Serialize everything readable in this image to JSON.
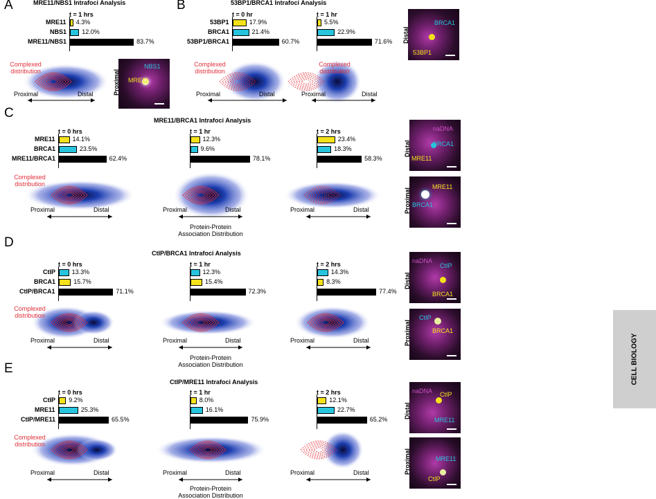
{
  "colors": {
    "yellow": "#f5e21a",
    "cyan": "#27c4de",
    "black": "#000000",
    "red": "#e0303a",
    "blue": "#1d3fb0"
  },
  "panels": {
    "A": {
      "letter": "A",
      "title": "MRE11/NBS1 Intrafoci Analysis",
      "charts": [
        {
          "time": "t = 1 hrs",
          "rows": [
            {
              "label": "MRE11",
              "value": 4.3,
              "text": "4.3%",
              "color": "yellow"
            },
            {
              "label": "NBS1",
              "value": 12.0,
              "text": "12.0%",
              "color": "cyan"
            },
            {
              "label": "MRE11/NBS1",
              "value": 83.7,
              "text": "83.7%",
              "color": "black"
            }
          ]
        }
      ],
      "complexed": "Complexed\ndistribution",
      "proximal": "Proximal",
      "distal": "Distal",
      "micro": {
        "side": "Proximal",
        "labels": [
          "NBS1",
          "MRE11"
        ]
      }
    },
    "B": {
      "letter": "B",
      "title": "53BP1/BRCA1 Intrafoci Analysis",
      "charts": [
        {
          "time": "t = 0 hr",
          "rows": [
            {
              "label": "53BP1",
              "value": 17.9,
              "text": "17.9%",
              "color": "yellow"
            },
            {
              "label": "BRCA1",
              "value": 21.4,
              "text": "21.4%",
              "color": "cyan"
            },
            {
              "label": "53BP1/BRCA1",
              "value": 60.7,
              "text": "60.7%",
              "color": "black"
            }
          ]
        },
        {
          "time": "t = 1 hr",
          "rows": [
            {
              "label": "",
              "value": 5.5,
              "text": "5.5%",
              "color": "yellow"
            },
            {
              "label": "",
              "value": 22.9,
              "text": "22.9%",
              "color": "cyan"
            },
            {
              "label": "",
              "value": 71.6,
              "text": "71.6%",
              "color": "black"
            }
          ]
        }
      ],
      "complexed": "Complexed\ndistribution",
      "proximal": "Proximal",
      "distal": "Distal",
      "micro": {
        "side": "Distal",
        "labels": [
          "BRCA1",
          "53BP1"
        ]
      }
    },
    "C": {
      "letter": "C",
      "title": "MRE11/BRCA1 Intrafoci Analysis",
      "charts": [
        {
          "time": "t = 0 hrs",
          "rows": [
            {
              "label": "MRE11",
              "value": 14.1,
              "text": "14.1%",
              "color": "yellow"
            },
            {
              "label": "BRCA1",
              "value": 23.5,
              "text": "23.5%",
              "color": "cyan"
            },
            {
              "label": "MRE11/BRCA1",
              "value": 62.4,
              "text": "62.4%",
              "color": "black"
            }
          ]
        },
        {
          "time": "t = 1 hr",
          "rows": [
            {
              "label": "",
              "value": 12.3,
              "text": "12.3%",
              "color": "yellow"
            },
            {
              "label": "",
              "value": 9.6,
              "text": "9.6%",
              "color": "cyan"
            },
            {
              "label": "",
              "value": 78.1,
              "text": "78.1%",
              "color": "black"
            }
          ]
        },
        {
          "time": "t = 2 hrs",
          "rows": [
            {
              "label": "",
              "value": 23.4,
              "text": "23.4%",
              "color": "yellow"
            },
            {
              "label": "",
              "value": 18.3,
              "text": "18.3%",
              "color": "cyan"
            },
            {
              "label": "",
              "value": 58.3,
              "text": "58.3%",
              "color": "black"
            }
          ]
        }
      ],
      "complexed": "Complexed\ndistribution",
      "proximal": "Proximal",
      "distal": "Distal",
      "ppad": "Protein-Protein\nAssociation Distribution",
      "micro": [
        {
          "side": "Distal",
          "labels": [
            "naDNA",
            "BRCA1",
            "MRE11"
          ]
        },
        {
          "side": "Proximal",
          "labels": [
            "MRE11",
            "BRCA1"
          ]
        }
      ]
    },
    "D": {
      "letter": "D",
      "title": "CtIP/BRCA1 Intrafoci Analysis",
      "charts": [
        {
          "time": "t = 0 hrs",
          "rows": [
            {
              "label": "CtIP",
              "value": 13.3,
              "text": "13.3%",
              "color": "cyan"
            },
            {
              "label": "BRCA1",
              "value": 15.7,
              "text": "15.7%",
              "color": "yellow"
            },
            {
              "label": "CtIP/BRCA1",
              "value": 71.1,
              "text": "71.1%",
              "color": "black"
            }
          ]
        },
        {
          "time": "t = 1 hr",
          "rows": [
            {
              "label": "",
              "value": 12.3,
              "text": "12.3%",
              "color": "cyan"
            },
            {
              "label": "",
              "value": 15.4,
              "text": "15.4%",
              "color": "yellow"
            },
            {
              "label": "",
              "value": 72.3,
              "text": "72.3%",
              "color": "black"
            }
          ]
        },
        {
          "time": "t = 2 hrs",
          "rows": [
            {
              "label": "",
              "value": 14.3,
              "text": "14.3%",
              "color": "cyan"
            },
            {
              "label": "",
              "value": 8.3,
              "text": "8.3%",
              "color": "yellow"
            },
            {
              "label": "",
              "value": 77.4,
              "text": "77.4%",
              "color": "black"
            }
          ]
        }
      ],
      "complexed": "Complexed\ndistribution",
      "proximal": "Proximal",
      "distal": "Distal",
      "ppad": "Protein-Protein\nAssociation Distribution",
      "micro": [
        {
          "side": "Distal",
          "labels": [
            "naDNA",
            "CtIP",
            "BRCA1"
          ]
        },
        {
          "side": "Proximal",
          "labels": [
            "CtIP",
            "BRCA1"
          ]
        }
      ]
    },
    "E": {
      "letter": "E",
      "title": "CtIP/MRE11 Intrafoci Analysis",
      "charts": [
        {
          "time": "t = 0 hrs",
          "rows": [
            {
              "label": "CtIP",
              "value": 9.2,
              "text": "9.2%",
              "color": "yellow"
            },
            {
              "label": "MRE11",
              "value": 25.3,
              "text": "25.3%",
              "color": "cyan"
            },
            {
              "label": "CtIP/MRE11",
              "value": 65.5,
              "text": "65.5%",
              "color": "black"
            }
          ]
        },
        {
          "time": "t = 1 hr",
          "rows": [
            {
              "label": "",
              "value": 8.0,
              "text": "8.0%",
              "color": "yellow"
            },
            {
              "label": "",
              "value": 16.1,
              "text": "16.1%",
              "color": "cyan"
            },
            {
              "label": "",
              "value": 75.9,
              "text": "75.9%",
              "color": "black"
            }
          ]
        },
        {
          "time": "t = 2 hrs",
          "rows": [
            {
              "label": "",
              "value": 12.1,
              "text": "12.1%",
              "color": "yellow"
            },
            {
              "label": "",
              "value": 22.7,
              "text": "22.7%",
              "color": "cyan"
            },
            {
              "label": "",
              "value": 65.2,
              "text": "65.2%",
              "color": "black"
            }
          ]
        }
      ],
      "complexed": "Complexed\ndistribution",
      "proximal": "Proximal",
      "distal": "Distal",
      "ppad": "Protein-Protein\nAssociation Distribution",
      "micro": [
        {
          "side": "Distal",
          "labels": [
            "naDNA",
            "CtIP",
            "MRE11"
          ]
        },
        {
          "side": "Proximal",
          "labels": [
            "MRE11",
            "CtIP"
          ]
        }
      ]
    }
  },
  "side_tab": "CELL BIOLOGY"
}
